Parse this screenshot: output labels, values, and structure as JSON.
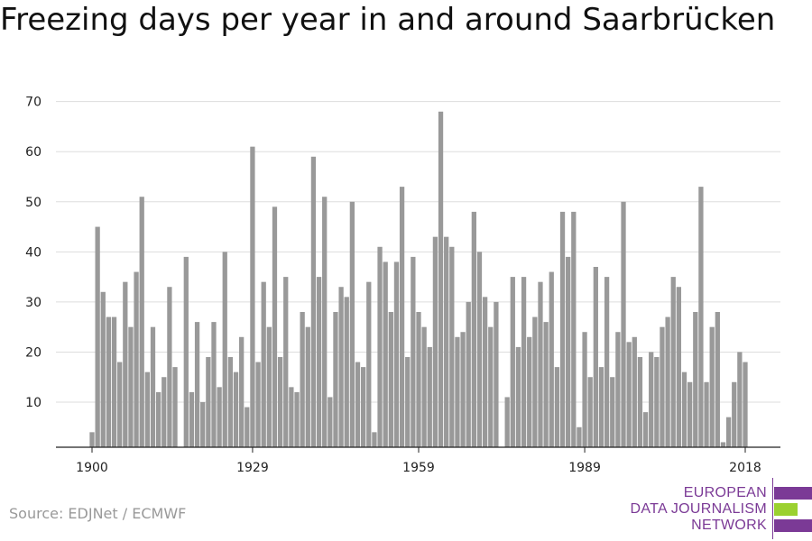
{
  "chart_data": {
    "type": "bar",
    "title": "Freezing days per year in and around Saarbrücken",
    "xlabel": "",
    "ylabel": "",
    "ylim": [
      1,
      73
    ],
    "yticks": [
      10,
      20,
      30,
      40,
      50,
      60,
      70
    ],
    "xticks": [
      1900,
      1929,
      1959,
      1989,
      2018
    ],
    "grid": true,
    "x": [
      1900,
      1901,
      1902,
      1903,
      1904,
      1905,
      1906,
      1907,
      1908,
      1909,
      1910,
      1911,
      1912,
      1913,
      1914,
      1915,
      1916,
      1917,
      1918,
      1919,
      1920,
      1921,
      1922,
      1923,
      1924,
      1925,
      1926,
      1927,
      1928,
      1929,
      1930,
      1931,
      1932,
      1933,
      1934,
      1935,
      1936,
      1937,
      1938,
      1939,
      1940,
      1941,
      1942,
      1943,
      1944,
      1945,
      1946,
      1947,
      1948,
      1949,
      1950,
      1951,
      1952,
      1953,
      1954,
      1955,
      1956,
      1957,
      1958,
      1959,
      1960,
      1961,
      1962,
      1963,
      1964,
      1965,
      1966,
      1967,
      1968,
      1969,
      1970,
      1971,
      1972,
      1973,
      1974,
      1975,
      1976,
      1977,
      1978,
      1979,
      1980,
      1981,
      1982,
      1983,
      1984,
      1985,
      1986,
      1987,
      1988,
      1989,
      1990,
      1991,
      1992,
      1993,
      1994,
      1995,
      1996,
      1997,
      1998,
      1999,
      2000,
      2001,
      2002,
      2003,
      2004,
      2005,
      2006,
      2007,
      2008,
      2009,
      2010,
      2011,
      2012,
      2013,
      2014,
      2015,
      2016,
      2017,
      2018
    ],
    "values": [
      4,
      45,
      32,
      27,
      27,
      18,
      34,
      25,
      36,
      51,
      16,
      25,
      12,
      15,
      33,
      17,
      0,
      39,
      12,
      26,
      10,
      19,
      26,
      13,
      40,
      19,
      16,
      23,
      9,
      61,
      18,
      34,
      25,
      49,
      19,
      35,
      13,
      12,
      28,
      25,
      59,
      35,
      51,
      11,
      28,
      33,
      31,
      50,
      18,
      17,
      34,
      4,
      41,
      38,
      28,
      38,
      53,
      19,
      39,
      28,
      25,
      21,
      43,
      68,
      43,
      41,
      23,
      24,
      30,
      48,
      40,
      31,
      25,
      30,
      0,
      11,
      35,
      21,
      35,
      23,
      27,
      34,
      26,
      36,
      17,
      48,
      39,
      48,
      5,
      24,
      15,
      37,
      17,
      35,
      15,
      24,
      50,
      22,
      23,
      19,
      8,
      20,
      19,
      25,
      27,
      35,
      33,
      16,
      14,
      28,
      53,
      14,
      25,
      28,
      2,
      7,
      14,
      20,
      18
    ]
  },
  "source": "Source: EDJNet / ECMWF",
  "logo": {
    "line1": "EUROPEAN",
    "line2": "DATA JOURNALISM",
    "line3": "NETWORK",
    "color_purple": "#7b3a96",
    "color_green": "#9bd130"
  },
  "colors": {
    "bar": "#999999",
    "grid": "#dddddd",
    "axis": "#222222"
  }
}
